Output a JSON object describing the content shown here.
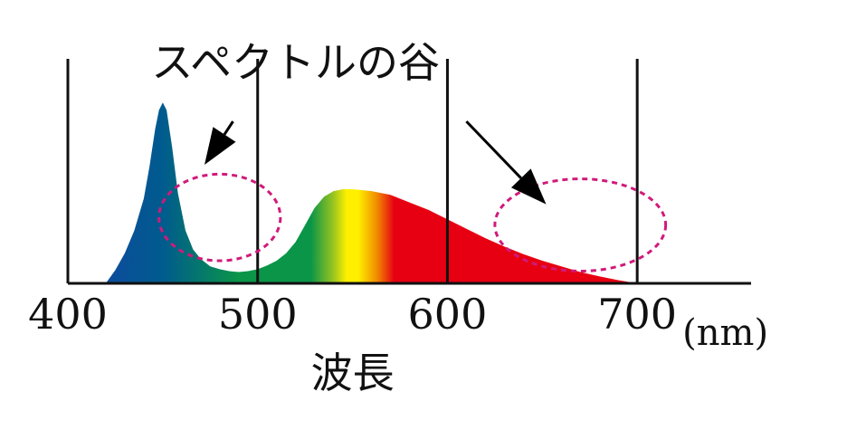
{
  "chart_data": {
    "type": "area",
    "title": "",
    "xlabel": "波長",
    "x_unit": "(nm)",
    "ylabel": "",
    "xlim": [
      400,
      760
    ],
    "ylim": [
      0,
      1
    ],
    "x_ticks": [
      "400",
      "500",
      "600",
      "700"
    ],
    "grid_x": [
      500,
      600,
      700
    ],
    "grid": false,
    "legend": "none",
    "annotation": {
      "text": "スペクトルの谷",
      "targets": [
        {
          "x": 480,
          "y": 0.35,
          "rx": 32,
          "ry": 0.46,
          "from_x": 487,
          "from_y": 0.86
        },
        {
          "x": 670,
          "y": 0.31,
          "rx": 45,
          "ry": 0.49,
          "from_x": 610,
          "from_y": 0.86
        }
      ],
      "ellipse_color": "#d01a7a"
    },
    "series": [
      {
        "x": [
          420,
          425,
          430,
          435,
          440,
          443,
          446,
          448,
          450,
          452,
          455,
          458,
          462,
          466,
          470,
          475,
          480,
          485,
          490,
          495,
          500,
          505,
          510,
          515,
          520,
          525,
          530,
          535,
          540,
          545,
          550,
          555,
          560,
          570,
          580,
          590,
          600,
          610,
          620,
          630,
          640,
          650,
          660,
          670,
          680,
          690,
          700
        ],
        "y": [
          0.0,
          0.07,
          0.16,
          0.28,
          0.45,
          0.62,
          0.82,
          0.92,
          0.96,
          0.92,
          0.72,
          0.48,
          0.28,
          0.18,
          0.13,
          0.09,
          0.075,
          0.065,
          0.06,
          0.065,
          0.075,
          0.095,
          0.12,
          0.16,
          0.22,
          0.31,
          0.4,
          0.46,
          0.49,
          0.5,
          0.5,
          0.495,
          0.49,
          0.47,
          0.43,
          0.39,
          0.34,
          0.29,
          0.24,
          0.195,
          0.155,
          0.12,
          0.09,
          0.06,
          0.037,
          0.017,
          0.0
        ]
      }
    ],
    "colors": {
      "violet": "#0d4b9c",
      "blue": "#005b8e",
      "green": "#0a9548",
      "yellow": "#fff000",
      "orange": "#f08a00",
      "red": "#e60012",
      "axis": "#111111"
    }
  }
}
